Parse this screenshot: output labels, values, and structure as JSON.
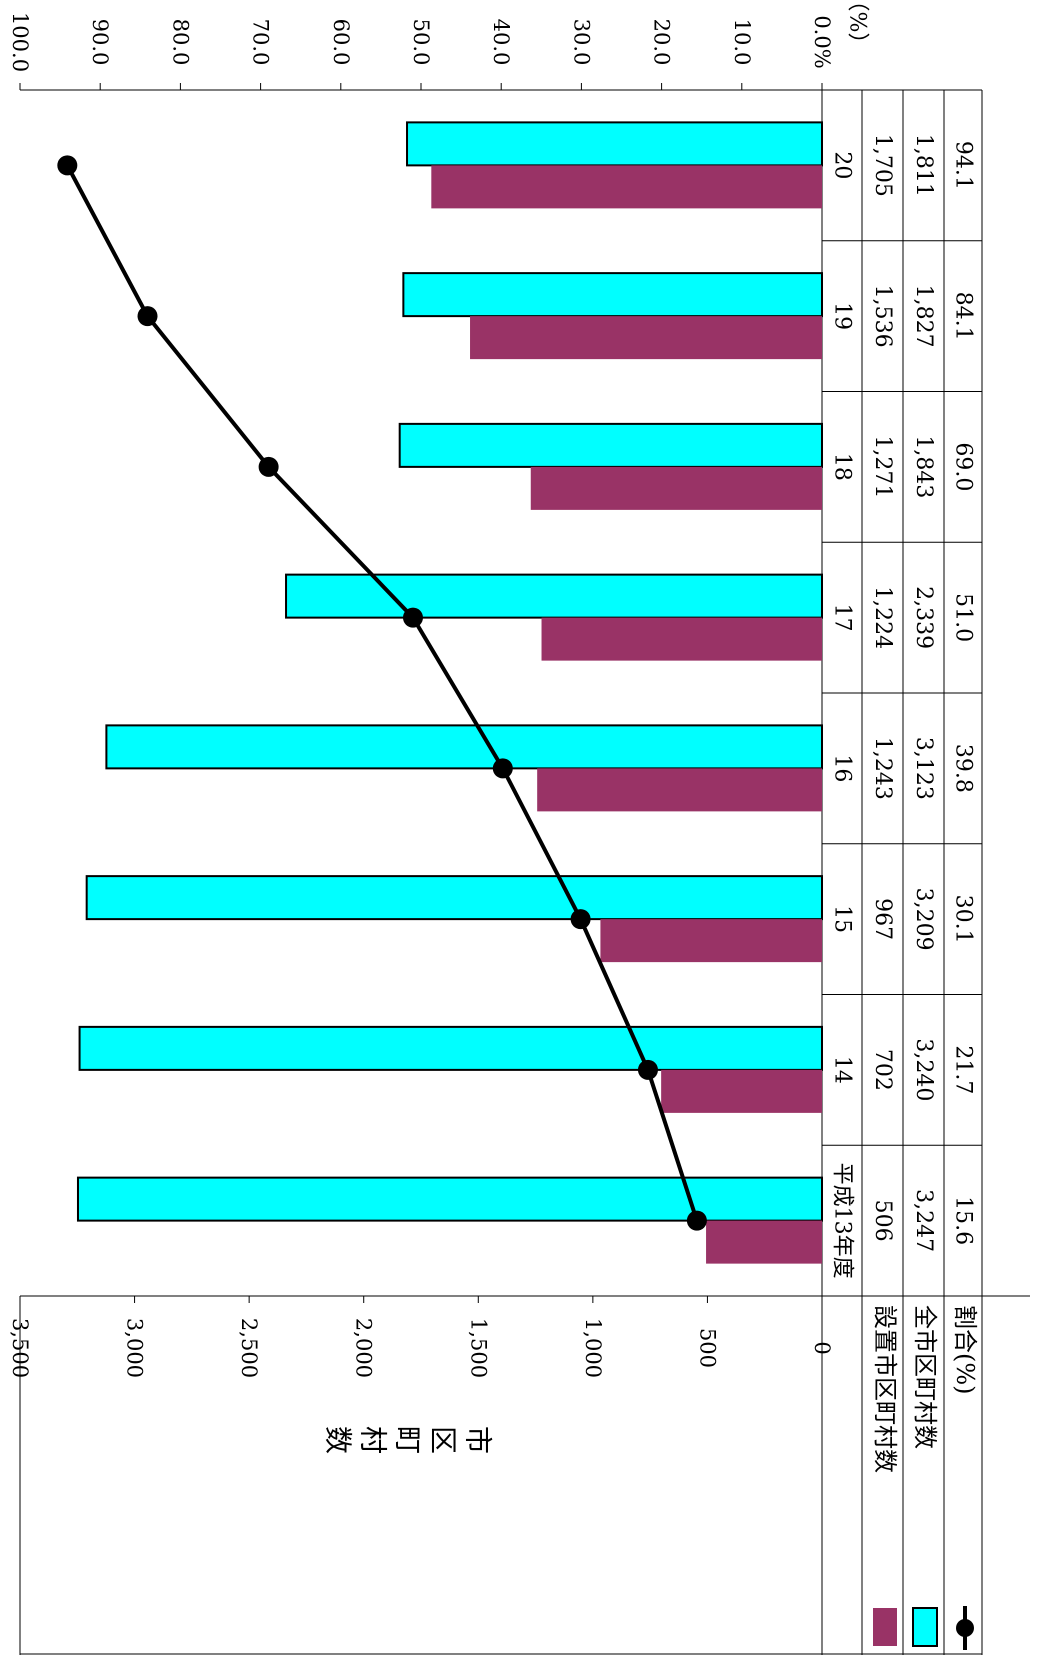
{
  "chart_data": {
    "type": "bar",
    "orientation": "rotated-90-clockwise",
    "categories": [
      "平成13年度",
      "14",
      "15",
      "16",
      "17",
      "18",
      "19",
      "20"
    ],
    "series": [
      {
        "name": "設置市区町村数",
        "type": "bar",
        "color": "#993366",
        "values": [
          506,
          702,
          967,
          1243,
          1224,
          1271,
          1536,
          1705
        ]
      },
      {
        "name": "全市区町村数",
        "type": "bar",
        "color": "#00FFFF",
        "values": [
          3247,
          3240,
          3209,
          3123,
          2339,
          1843,
          1827,
          1811
        ]
      },
      {
        "name": "割合(%)",
        "type": "line",
        "color": "#000000",
        "values": [
          15.6,
          21.7,
          30.1,
          39.8,
          51.0,
          69.0,
          84.1,
          94.1
        ]
      }
    ],
    "table_rows": [
      [
        "506",
        "702",
        "967",
        "1,243",
        "1,224",
        "1,271",
        "1,536",
        "1,705"
      ],
      [
        "3,247",
        "3,240",
        "3,209",
        "3,123",
        "2,339",
        "1,843",
        "1,827",
        "1,811"
      ],
      [
        "15.6",
        "21.7",
        "30.1",
        "39.8",
        "51.0",
        "69.0",
        "84.1",
        "94.1"
      ]
    ],
    "y_left": {
      "label": "市区町村数",
      "min": 0,
      "max": 3500,
      "ticks": [
        "0",
        "500",
        "1,000",
        "1,500",
        "2,000",
        "2,500",
        "3,000",
        "3,500"
      ]
    },
    "y_right": {
      "label": "（%）",
      "min": 0,
      "max": 100,
      "ticks": [
        "0.0%",
        "10.0",
        "20.0",
        "30.0",
        "40.0",
        "50.0",
        "60.0",
        "70.0",
        "80.0",
        "90.0",
        "100.0"
      ]
    },
    "grid": false,
    "legend_position": "bottom-left"
  }
}
